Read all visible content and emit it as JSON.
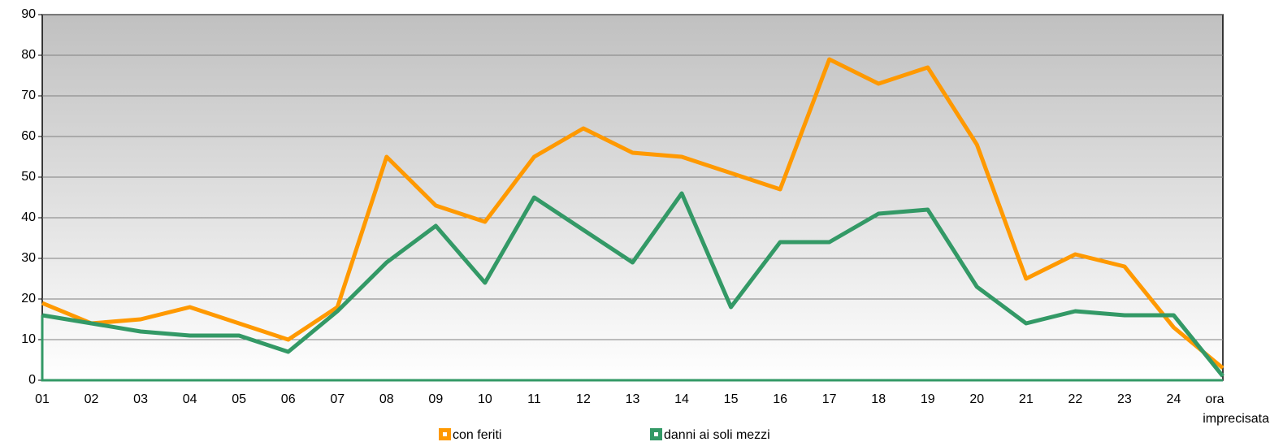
{
  "chart_data": {
    "type": "line",
    "categories": [
      "01",
      "02",
      "03",
      "04",
      "05",
      "06",
      "07",
      "08",
      "09",
      "10",
      "11",
      "12",
      "13",
      "14",
      "15",
      "16",
      "17",
      "18",
      "19",
      "20",
      "21",
      "22",
      "23",
      "24",
      "ora imprecisata"
    ],
    "series": [
      {
        "name": "con feriti",
        "color": "#ff9900",
        "values": [
          19,
          14,
          15,
          18,
          14,
          10,
          18,
          55,
          43,
          39,
          55,
          62,
          56,
          55,
          51,
          47,
          79,
          73,
          77,
          58,
          25,
          31,
          28,
          13,
          3
        ]
      },
      {
        "name": "danni ai soli mezzi",
        "color": "#339966",
        "values": [
          16,
          14,
          12,
          11,
          11,
          7,
          17,
          29,
          38,
          24,
          45,
          37,
          29,
          46,
          18,
          34,
          34,
          41,
          42,
          23,
          14,
          17,
          16,
          16,
          1
        ]
      }
    ],
    "ylim": [
      0,
      90
    ],
    "yticks": [
      0,
      10,
      20,
      30,
      40,
      50,
      60,
      70,
      80,
      90
    ],
    "grid": true,
    "legend": "bottom"
  }
}
